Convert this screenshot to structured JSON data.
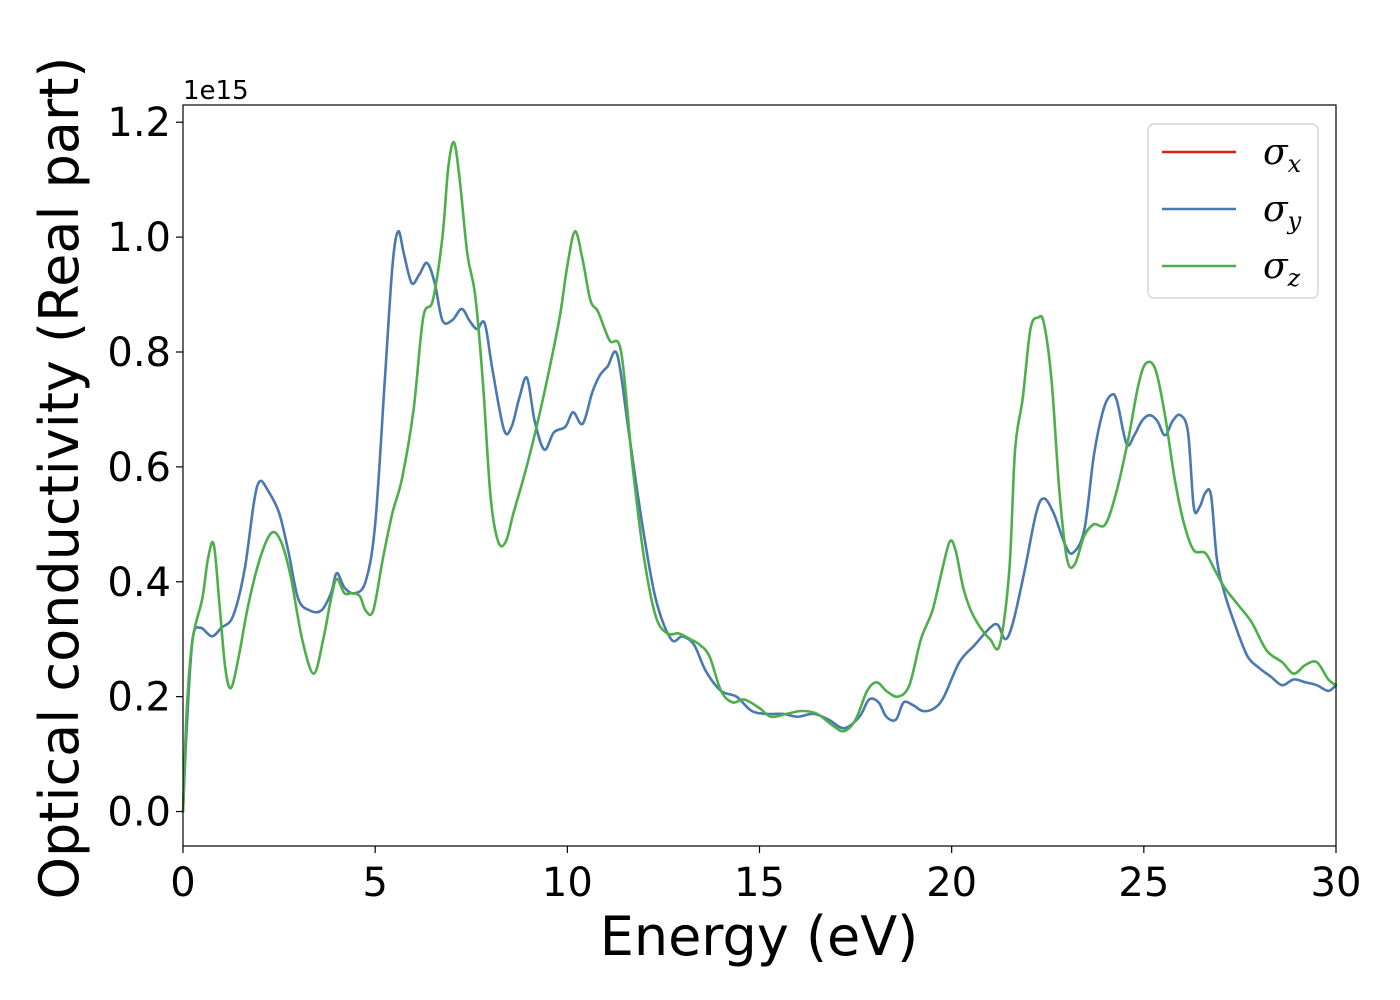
{
  "chart_data": {
    "type": "line",
    "xlabel": "Energy (eV)",
    "ylabel": "Optical conductivity (Real part)",
    "y_offset_text": "1e15",
    "xlim": [
      0,
      30
    ],
    "ylim": [
      -0.06,
      1.23
    ],
    "x_ticks": [
      "0",
      "5",
      "10",
      "15",
      "20",
      "25",
      "30"
    ],
    "y_ticks": [
      "0.0",
      "0.2",
      "0.4",
      "0.6",
      "0.8",
      "1.0",
      "1.2"
    ],
    "x_tick_values": [
      0,
      5,
      10,
      15,
      20,
      25,
      30
    ],
    "y_tick_values": [
      0.0,
      0.2,
      0.4,
      0.6,
      0.8,
      1.0,
      1.2
    ],
    "grid": false,
    "legend_position": "top-right",
    "series": [
      {
        "name": "σx",
        "legend_base": "σ",
        "legend_sub": "x",
        "color": "#e41a1c",
        "x": [
          0,
          0.1,
          0.25,
          0.45,
          0.75,
          1.0,
          1.3,
          1.6,
          1.85,
          2.0,
          2.2,
          2.5,
          2.75,
          3.0,
          3.3,
          3.6,
          3.85,
          4.0,
          4.2,
          4.45,
          4.75,
          5.0,
          5.25,
          5.45,
          5.6,
          5.75,
          5.95,
          6.15,
          6.35,
          6.55,
          6.75,
          7.0,
          7.25,
          7.45,
          7.65,
          7.85,
          8.05,
          8.35,
          8.55,
          8.75,
          8.95,
          9.15,
          9.4,
          9.65,
          9.95,
          10.15,
          10.4,
          10.65,
          10.85,
          11.05,
          11.3,
          11.6,
          11.95,
          12.3,
          12.7,
          13.0,
          13.3,
          13.6,
          14.0,
          14.4,
          14.8,
          15.2,
          15.6,
          16.0,
          16.4,
          16.8,
          17.2,
          17.6,
          17.85,
          18.1,
          18.3,
          18.55,
          18.75,
          19.0,
          19.25,
          19.55,
          19.8,
          20.2,
          20.6,
          21.0,
          21.2,
          21.4,
          21.6,
          21.9,
          22.2,
          22.4,
          22.65,
          22.95,
          23.15,
          23.45,
          23.7,
          23.95,
          24.15,
          24.3,
          24.55,
          24.75,
          24.95,
          25.15,
          25.35,
          25.55,
          25.75,
          25.95,
          26.15,
          26.3,
          26.45,
          26.6,
          26.75,
          26.9,
          27.1,
          27.4,
          27.7,
          28.0,
          28.3,
          28.6,
          28.9,
          29.2,
          29.5,
          29.8,
          30.0
        ],
        "values": [
          0.0,
          0.15,
          0.3,
          0.32,
          0.305,
          0.32,
          0.34,
          0.42,
          0.54,
          0.575,
          0.56,
          0.52,
          0.45,
          0.37,
          0.35,
          0.35,
          0.38,
          0.415,
          0.39,
          0.38,
          0.4,
          0.5,
          0.75,
          0.95,
          1.01,
          0.97,
          0.92,
          0.935,
          0.955,
          0.92,
          0.855,
          0.855,
          0.875,
          0.855,
          0.84,
          0.85,
          0.77,
          0.665,
          0.67,
          0.72,
          0.755,
          0.68,
          0.63,
          0.66,
          0.67,
          0.695,
          0.675,
          0.73,
          0.76,
          0.775,
          0.795,
          0.66,
          0.5,
          0.37,
          0.3,
          0.305,
          0.29,
          0.245,
          0.21,
          0.2,
          0.175,
          0.17,
          0.17,
          0.165,
          0.17,
          0.16,
          0.145,
          0.165,
          0.195,
          0.19,
          0.165,
          0.16,
          0.19,
          0.185,
          0.175,
          0.18,
          0.2,
          0.26,
          0.29,
          0.32,
          0.325,
          0.3,
          0.33,
          0.42,
          0.52,
          0.545,
          0.52,
          0.465,
          0.45,
          0.49,
          0.62,
          0.7,
          0.725,
          0.715,
          0.64,
          0.655,
          0.68,
          0.69,
          0.68,
          0.655,
          0.68,
          0.69,
          0.66,
          0.53,
          0.53,
          0.555,
          0.55,
          0.44,
          0.38,
          0.32,
          0.27,
          0.25,
          0.235,
          0.22,
          0.23,
          0.225,
          0.22,
          0.21,
          0.22
        ],
        "visible": false
      },
      {
        "name": "σy",
        "legend_base": "σ",
        "legend_sub": "y",
        "color": "#4a78b0",
        "x": [
          0,
          0.1,
          0.25,
          0.45,
          0.75,
          1.0,
          1.3,
          1.6,
          1.85,
          2.0,
          2.2,
          2.5,
          2.75,
          3.0,
          3.3,
          3.6,
          3.85,
          4.0,
          4.2,
          4.45,
          4.75,
          5.0,
          5.25,
          5.45,
          5.6,
          5.75,
          5.95,
          6.15,
          6.35,
          6.55,
          6.75,
          7.0,
          7.25,
          7.45,
          7.65,
          7.85,
          8.05,
          8.35,
          8.55,
          8.75,
          8.95,
          9.15,
          9.4,
          9.65,
          9.95,
          10.15,
          10.4,
          10.65,
          10.85,
          11.05,
          11.3,
          11.6,
          11.95,
          12.3,
          12.7,
          13.0,
          13.3,
          13.6,
          14.0,
          14.4,
          14.8,
          15.2,
          15.6,
          16.0,
          16.4,
          16.8,
          17.2,
          17.6,
          17.85,
          18.1,
          18.3,
          18.55,
          18.75,
          19.0,
          19.25,
          19.55,
          19.8,
          20.2,
          20.6,
          21.0,
          21.2,
          21.4,
          21.6,
          21.9,
          22.2,
          22.4,
          22.65,
          22.95,
          23.15,
          23.45,
          23.7,
          23.95,
          24.15,
          24.3,
          24.55,
          24.75,
          24.95,
          25.15,
          25.35,
          25.55,
          25.75,
          25.95,
          26.15,
          26.3,
          26.45,
          26.6,
          26.75,
          26.9,
          27.1,
          27.4,
          27.7,
          28.0,
          28.3,
          28.6,
          28.9,
          29.2,
          29.5,
          29.8,
          30.0
        ],
        "values": [
          0.0,
          0.15,
          0.3,
          0.32,
          0.305,
          0.32,
          0.34,
          0.42,
          0.54,
          0.575,
          0.56,
          0.52,
          0.45,
          0.37,
          0.35,
          0.35,
          0.38,
          0.415,
          0.39,
          0.38,
          0.4,
          0.5,
          0.75,
          0.95,
          1.01,
          0.97,
          0.92,
          0.935,
          0.955,
          0.92,
          0.855,
          0.855,
          0.875,
          0.855,
          0.84,
          0.85,
          0.77,
          0.665,
          0.67,
          0.72,
          0.755,
          0.68,
          0.63,
          0.66,
          0.67,
          0.695,
          0.675,
          0.73,
          0.76,
          0.775,
          0.795,
          0.66,
          0.5,
          0.37,
          0.3,
          0.305,
          0.29,
          0.245,
          0.21,
          0.2,
          0.175,
          0.17,
          0.17,
          0.165,
          0.17,
          0.16,
          0.145,
          0.165,
          0.195,
          0.19,
          0.165,
          0.16,
          0.19,
          0.185,
          0.175,
          0.18,
          0.2,
          0.26,
          0.29,
          0.32,
          0.325,
          0.3,
          0.33,
          0.42,
          0.52,
          0.545,
          0.52,
          0.465,
          0.45,
          0.49,
          0.62,
          0.7,
          0.725,
          0.715,
          0.64,
          0.655,
          0.68,
          0.69,
          0.68,
          0.655,
          0.68,
          0.69,
          0.66,
          0.53,
          0.53,
          0.555,
          0.55,
          0.44,
          0.38,
          0.32,
          0.27,
          0.25,
          0.235,
          0.22,
          0.23,
          0.225,
          0.22,
          0.21,
          0.22
        ],
        "visible": true
      },
      {
        "name": "σz",
        "legend_base": "σ",
        "legend_sub": "z",
        "color": "#4daf4a",
        "x": [
          0,
          0.1,
          0.25,
          0.5,
          0.65,
          0.8,
          0.95,
          1.1,
          1.25,
          1.45,
          1.7,
          2.0,
          2.3,
          2.55,
          2.8,
          3.1,
          3.4,
          3.65,
          3.85,
          4.0,
          4.2,
          4.4,
          4.6,
          4.75,
          4.95,
          5.2,
          5.45,
          5.7,
          6.0,
          6.25,
          6.5,
          6.75,
          6.9,
          7.05,
          7.2,
          7.4,
          7.6,
          7.8,
          8.0,
          8.2,
          8.4,
          8.6,
          8.9,
          9.2,
          9.5,
          9.8,
          10.0,
          10.2,
          10.4,
          10.6,
          10.8,
          11.1,
          11.4,
          11.7,
          12.0,
          12.3,
          12.6,
          12.9,
          13.2,
          13.45,
          13.7,
          14.0,
          14.3,
          14.6,
          15.0,
          15.3,
          15.7,
          16.1,
          16.5,
          16.9,
          17.2,
          17.5,
          17.8,
          18.05,
          18.3,
          18.6,
          18.9,
          19.2,
          19.5,
          19.75,
          19.95,
          20.1,
          20.3,
          20.5,
          20.75,
          21.0,
          21.25,
          21.5,
          21.65,
          21.85,
          22.05,
          22.25,
          22.4,
          22.6,
          22.8,
          23.0,
          23.2,
          23.45,
          23.7,
          24.0,
          24.3,
          24.6,
          24.85,
          25.05,
          25.3,
          25.55,
          25.8,
          26.05,
          26.3,
          26.6,
          26.85,
          27.1,
          27.45,
          27.8,
          28.2,
          28.6,
          28.9,
          29.2,
          29.5,
          29.8,
          30.0
        ],
        "values": [
          0.0,
          0.18,
          0.3,
          0.37,
          0.44,
          0.465,
          0.36,
          0.25,
          0.215,
          0.27,
          0.36,
          0.44,
          0.485,
          0.47,
          0.41,
          0.3,
          0.24,
          0.3,
          0.37,
          0.405,
          0.38,
          0.38,
          0.375,
          0.35,
          0.35,
          0.44,
          0.52,
          0.58,
          0.7,
          0.86,
          0.89,
          1.0,
          1.12,
          1.165,
          1.1,
          0.97,
          0.9,
          0.75,
          0.55,
          0.47,
          0.47,
          0.52,
          0.59,
          0.67,
          0.76,
          0.86,
          0.95,
          1.01,
          0.96,
          0.89,
          0.87,
          0.82,
          0.8,
          0.6,
          0.44,
          0.34,
          0.31,
          0.31,
          0.3,
          0.29,
          0.27,
          0.21,
          0.19,
          0.195,
          0.18,
          0.165,
          0.17,
          0.175,
          0.17,
          0.15,
          0.14,
          0.16,
          0.21,
          0.225,
          0.21,
          0.2,
          0.22,
          0.3,
          0.35,
          0.42,
          0.47,
          0.455,
          0.39,
          0.35,
          0.32,
          0.3,
          0.29,
          0.42,
          0.63,
          0.72,
          0.84,
          0.86,
          0.85,
          0.75,
          0.56,
          0.44,
          0.43,
          0.48,
          0.5,
          0.5,
          0.56,
          0.65,
          0.74,
          0.78,
          0.77,
          0.69,
          0.58,
          0.5,
          0.455,
          0.45,
          0.42,
          0.39,
          0.36,
          0.33,
          0.28,
          0.26,
          0.24,
          0.255,
          0.26,
          0.23,
          0.22
        ],
        "visible": true
      }
    ]
  }
}
